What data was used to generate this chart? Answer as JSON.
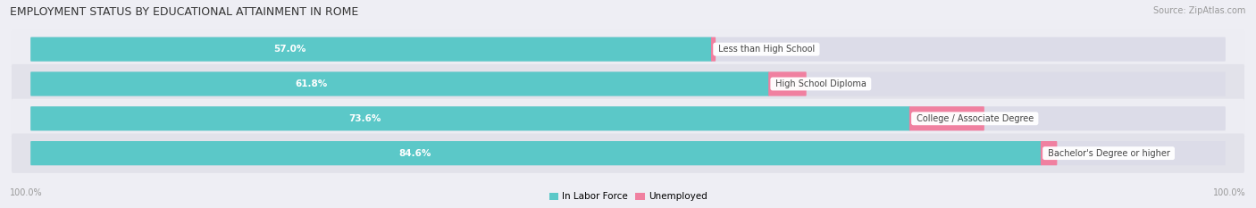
{
  "title": "EMPLOYMENT STATUS BY EDUCATIONAL ATTAINMENT IN ROME",
  "source": "Source: ZipAtlas.com",
  "categories": [
    "Less than High School",
    "High School Diploma",
    "College / Associate Degree",
    "Bachelor's Degree or higher"
  ],
  "labor_force_pct": [
    57.0,
    61.8,
    73.6,
    84.6
  ],
  "unemployed_pct": [
    0.3,
    3.1,
    6.2,
    1.3
  ],
  "max_value": 100.0,
  "labor_force_color": "#5BC8C8",
  "unemployed_color": "#F080A0",
  "row_bg_even": "#EDEDF3",
  "row_bg_odd": "#E2E2EA",
  "bar_track_color": "#DCDCE8",
  "title_fontsize": 9,
  "label_fontsize": 7.5,
  "tick_fontsize": 7,
  "legend_fontsize": 7.5,
  "figsize": [
    14.06,
    2.33
  ],
  "dpi": 100
}
